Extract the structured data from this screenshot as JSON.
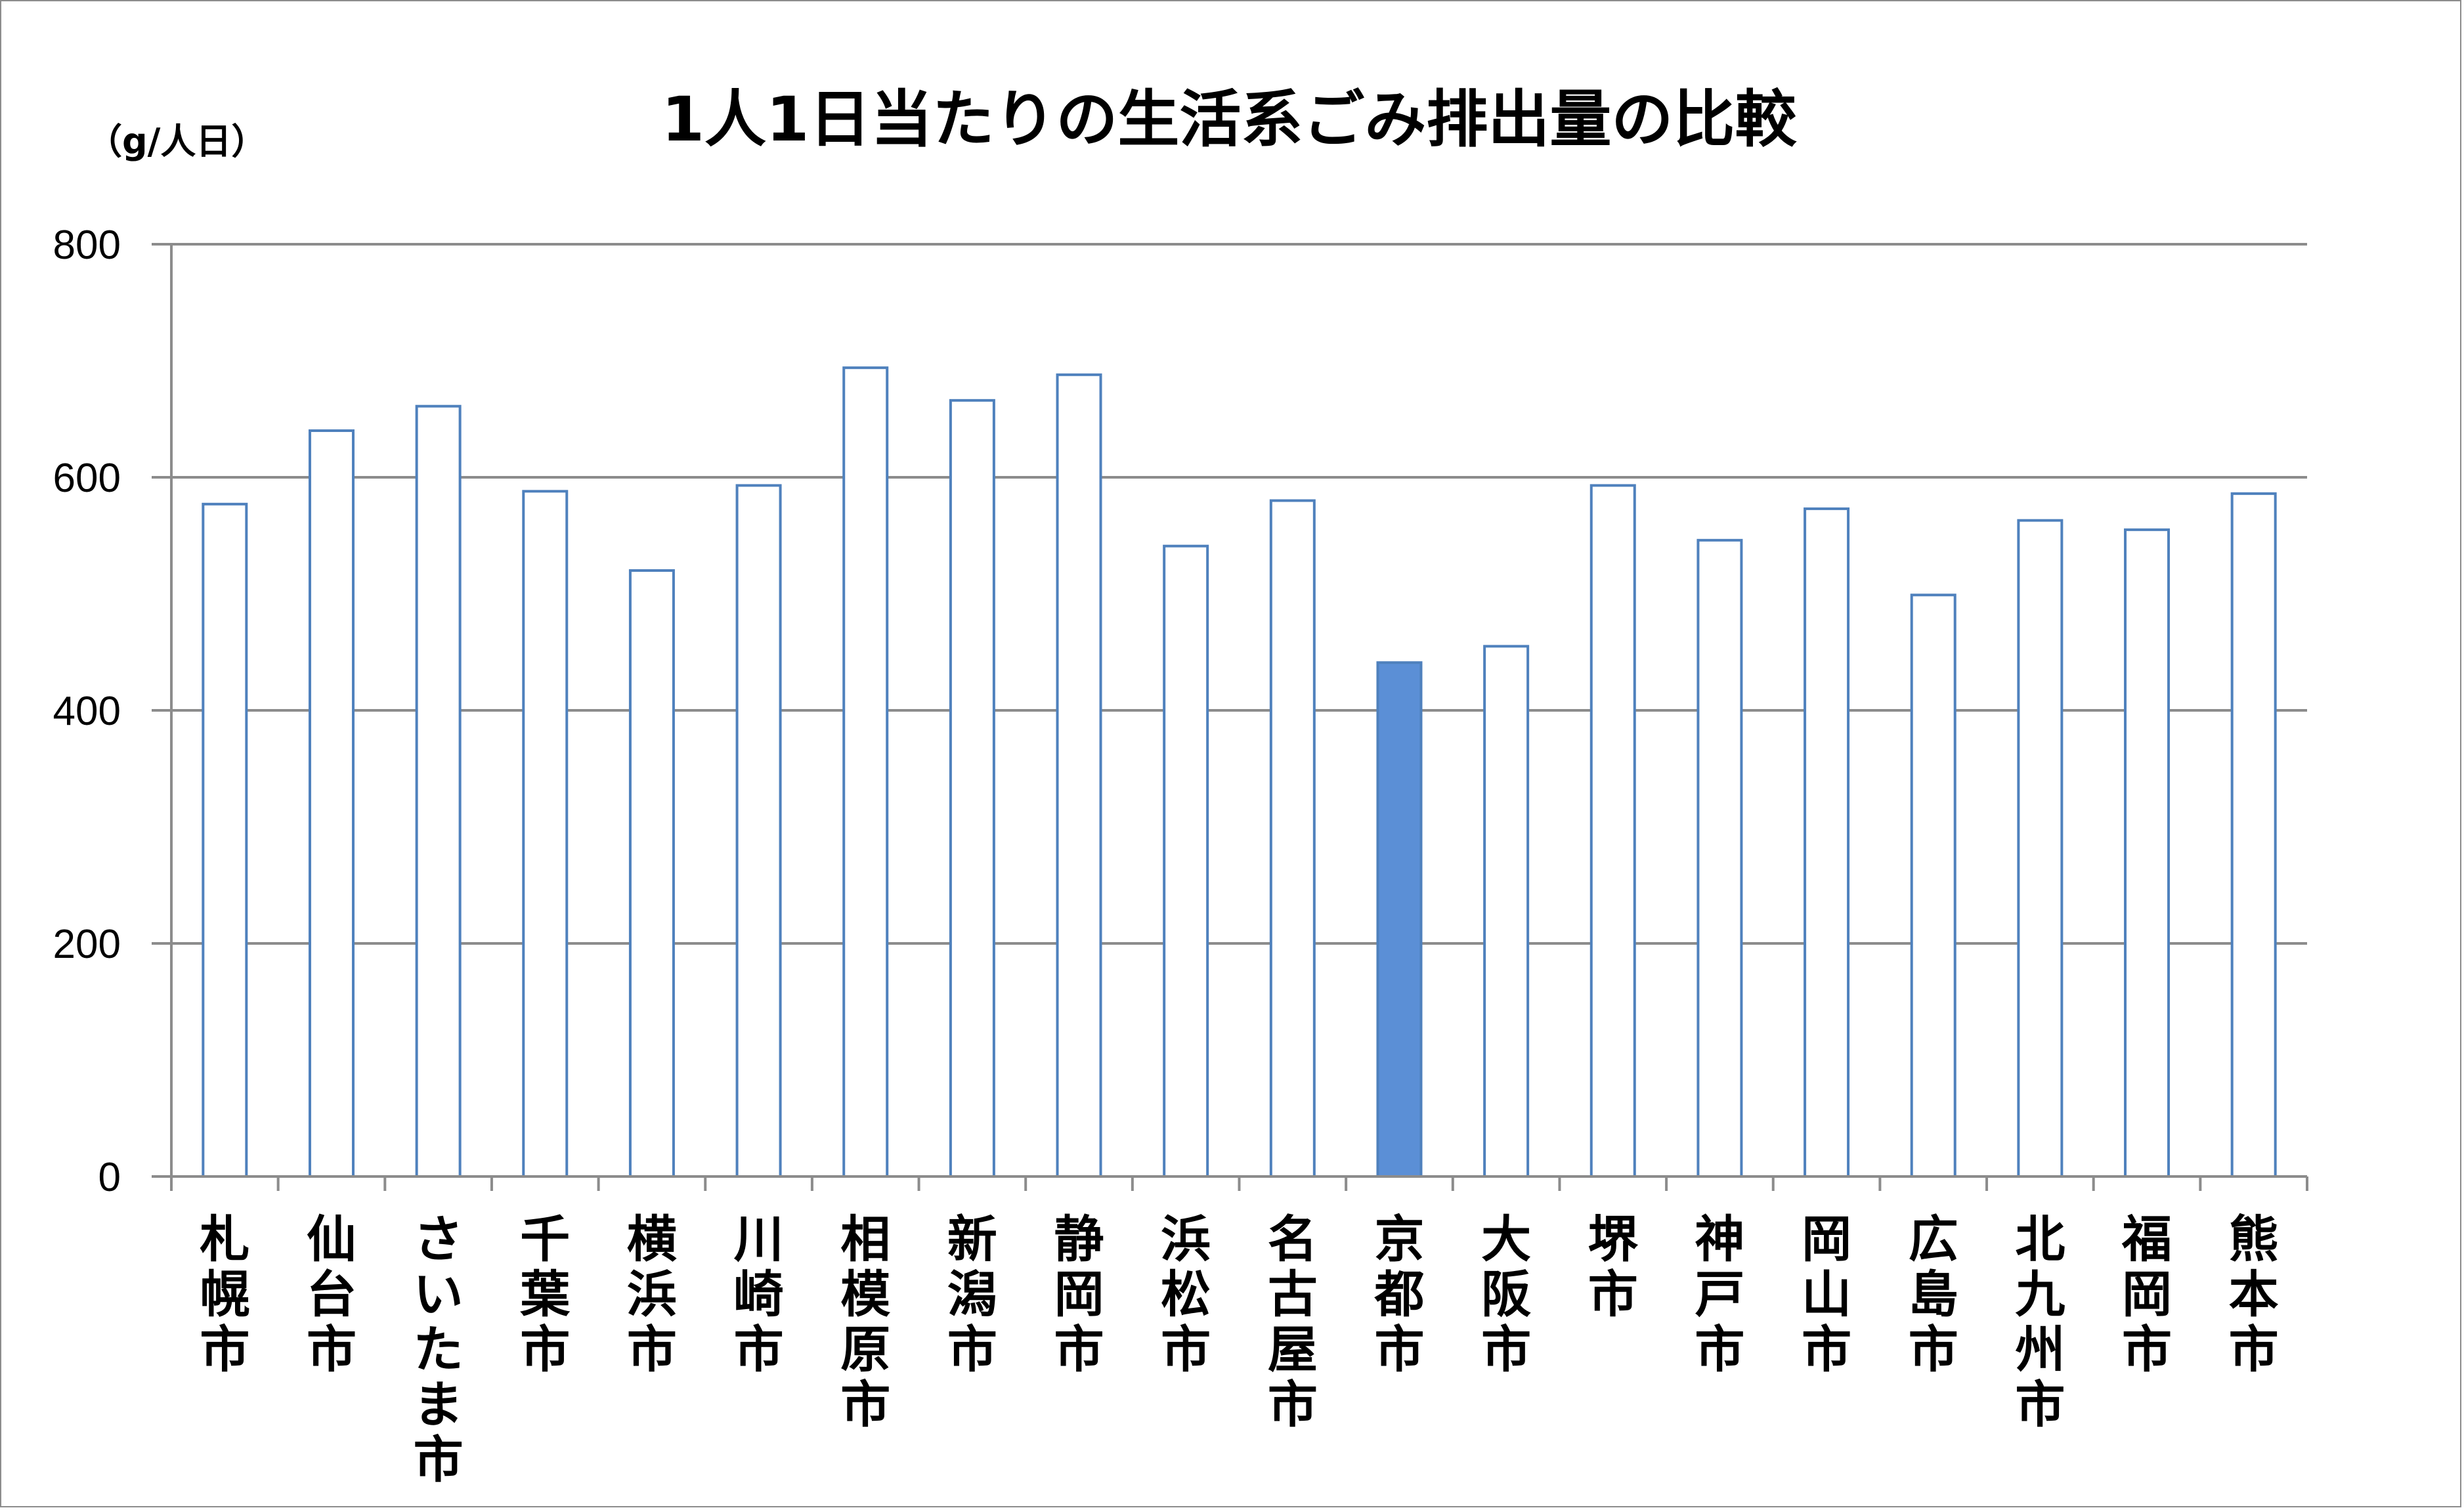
{
  "chart_data": {
    "type": "bar",
    "title": "1人1日当たりの生活系ごみ排出量の比較",
    "ylabel": "（g/人日）",
    "xlabel": "",
    "ylim": [
      0,
      800
    ],
    "yticks": [
      "0",
      "200",
      "400",
      "600",
      "800"
    ],
    "grid": true,
    "categories": [
      "札幌市",
      "仙台市",
      "さいたま市",
      "千葉市",
      "横浜市",
      "川崎市",
      "相模原市",
      "新潟市",
      "静岡市",
      "浜松市",
      "名古屋市",
      "京都市",
      "大阪市",
      "堺市",
      "神戸市",
      "岡山市",
      "広島市",
      "北九州市",
      "福岡市",
      "熊本市"
    ],
    "values": [
      577,
      640,
      661,
      588,
      520,
      593,
      694,
      666,
      688,
      541,
      580,
      441,
      455,
      593,
      546,
      573,
      499,
      563,
      555,
      586
    ],
    "highlight_category": "京都市",
    "colors": {
      "bar_outline": "#4f81bd",
      "bar_fill": "#ffffff",
      "highlight_fill": "#5b8fd6",
      "grid": "#8c8c8c",
      "axis": "#8c8c8c"
    }
  }
}
